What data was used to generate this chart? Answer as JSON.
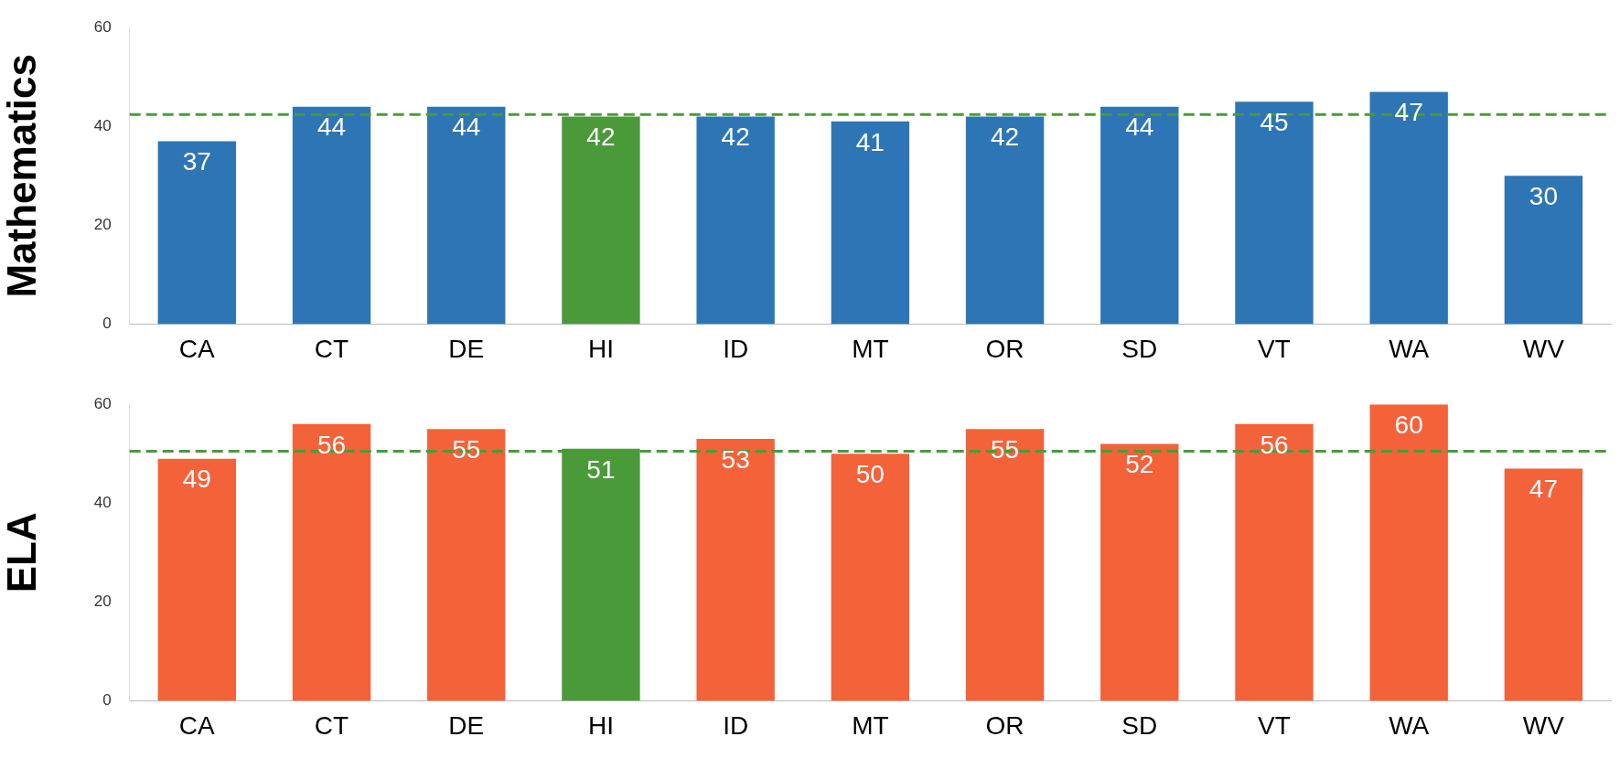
{
  "chart_data": [
    {
      "type": "bar",
      "ylabel": "Mathematics",
      "categories": [
        "CA",
        "CT",
        "DE",
        "HI",
        "ID",
        "MT",
        "OR",
        "SD",
        "VT",
        "WA",
        "WV"
      ],
      "values": [
        37,
        44,
        44,
        42,
        42,
        41,
        42,
        44,
        45,
        47,
        30
      ],
      "colors": [
        "#2e75b6",
        "#2e75b6",
        "#2e75b6",
        "#4a9a3a",
        "#2e75b6",
        "#2e75b6",
        "#2e75b6",
        "#2e75b6",
        "#2e75b6",
        "#2e75b6",
        "#2e75b6"
      ],
      "ylim": [
        0,
        60
      ],
      "yticks": [
        0,
        20,
        40,
        60
      ],
      "grid": false,
      "data_labels": true,
      "ref_lines": [
        {
          "axis": "y",
          "value": 42.4,
          "color": "#4a9a3a",
          "line_style": "dashed"
        }
      ]
    },
    {
      "type": "bar",
      "ylabel": "ELA",
      "categories": [
        "CA",
        "CT",
        "DE",
        "HI",
        "ID",
        "MT",
        "OR",
        "SD",
        "VT",
        "WA",
        "WV"
      ],
      "values": [
        49,
        56,
        55,
        51,
        53,
        50,
        55,
        52,
        56,
        60,
        47
      ],
      "colors": [
        "#f4623a",
        "#f4623a",
        "#f4623a",
        "#4a9a3a",
        "#f4623a",
        "#f4623a",
        "#f4623a",
        "#f4623a",
        "#f4623a",
        "#f4623a",
        "#f4623a"
      ],
      "ylim": [
        0,
        60
      ],
      "yticks": [
        0,
        20,
        40,
        60
      ],
      "grid": false,
      "data_labels": true,
      "ref_lines": [
        {
          "axis": "y",
          "value": 50.5,
          "color": "#4a9a3a",
          "line_style": "dashed"
        }
      ]
    }
  ]
}
